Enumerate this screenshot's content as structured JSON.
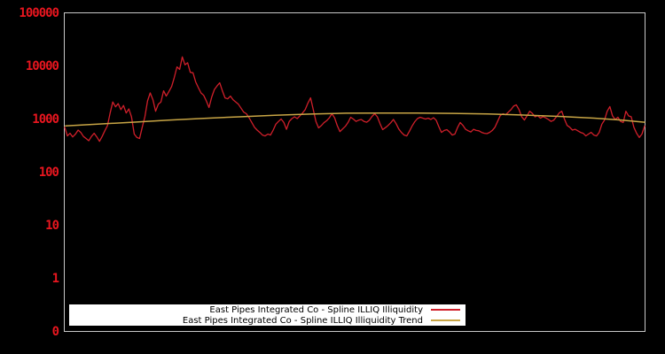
{
  "page": {
    "background": "#000000"
  },
  "chart_data": {
    "type": "line",
    "title": "",
    "xlabel": "",
    "ylabel": "",
    "grid": "off",
    "plot_background": "#000000",
    "frame_color": "#c8c8c8",
    "y_axis": {
      "scale": "log",
      "range": [
        0.1,
        100000
      ],
      "tick_color": "#e8161f",
      "ticks": [
        {
          "value": 100000,
          "label": "100000"
        },
        {
          "value": 10000,
          "label": "10000"
        },
        {
          "value": 1000,
          "label": "1000"
        },
        {
          "value": 100,
          "label": "100"
        },
        {
          "value": 10,
          "label": "10"
        },
        {
          "value": 1,
          "label": "1"
        },
        {
          "value": 0.1,
          "label": "0"
        }
      ]
    },
    "x_axis": {
      "scale": "linear",
      "tick_labels": []
    },
    "legend": {
      "position": "bottom-left",
      "background": "#ffffff",
      "border_color": "#000000",
      "text_color": "#000000"
    },
    "series": [
      {
        "name": "East Pipes Integrated Co - Spline ILLIQ Illiquidity",
        "color": "#d01f2a",
        "line_width": 1.3,
        "values": [
          700,
          480,
          540,
          460,
          520,
          620,
          560,
          470,
          430,
          390,
          470,
          540,
          460,
          380,
          470,
          600,
          750,
          1300,
          2100,
          1700,
          1950,
          1500,
          1800,
          1300,
          1550,
          1100,
          520,
          450,
          430,
          700,
          1100,
          2200,
          3100,
          2300,
          1400,
          1900,
          2100,
          3400,
          2700,
          3300,
          4100,
          6100,
          9600,
          8600,
          14800,
          10500,
          11500,
          7600,
          7400,
          5000,
          3900,
          3100,
          2800,
          2200,
          1650,
          2600,
          3600,
          4200,
          4800,
          3400,
          2500,
          2400,
          2700,
          2300,
          2100,
          1900,
          1600,
          1350,
          1260,
          1050,
          860,
          700,
          620,
          560,
          500,
          480,
          520,
          500,
          620,
          800,
          900,
          1000,
          860,
          640,
          900,
          1020,
          1100,
          1020,
          1150,
          1300,
          1500,
          2000,
          2500,
          1500,
          900,
          680,
          750,
          850,
          930,
          1050,
          1260,
          1050,
          750,
          580,
          650,
          730,
          860,
          1080,
          1000,
          900,
          950,
          980,
          900,
          870,
          950,
          1120,
          1260,
          1100,
          820,
          630,
          690,
          760,
          850,
          980,
          820,
          650,
          560,
          500,
          480,
          590,
          740,
          890,
          1020,
          1080,
          1040,
          1000,
          1040,
          980,
          1060,
          950,
          720,
          560,
          610,
          630,
          570,
          500,
          520,
          690,
          860,
          760,
          640,
          600,
          570,
          640,
          610,
          600,
          560,
          540,
          530,
          560,
          610,
          700,
          900,
          1170,
          1260,
          1200,
          1350,
          1500,
          1750,
          1850,
          1500,
          1100,
          960,
          1150,
          1400,
          1280,
          1100,
          1160,
          1040,
          1110,
          1050,
          980,
          900,
          950,
          1100,
          1300,
          1400,
          1000,
          760,
          700,
          620,
          640,
          600,
          560,
          540,
          480,
          520,
          560,
          500,
          480,
          560,
          800,
          960,
          1400,
          1720,
          1150,
          980,
          1080,
          900,
          860,
          1400,
          1150,
          1100,
          700,
          540,
          450,
          520,
          740
        ]
      },
      {
        "name": "East Pipes Integrated Co - Spline ILLIQ Illiquidity Trend",
        "color": "#c8a545",
        "line_width": 1.5,
        "x": [
          0.3,
          12.3,
          25.5,
          38.8,
          52.1,
          65.4,
          78.6,
          91.9,
          105.2,
          118.5,
          131.7,
          145.0,
          158.3,
          171.6,
          184.8,
          198.1,
          208.1,
          217
        ],
        "values": [
          740,
          800,
          870,
          950,
          1030,
          1100,
          1180,
          1240,
          1290,
          1300,
          1295,
          1280,
          1250,
          1190,
          1120,
          1040,
          960,
          870
        ]
      }
    ]
  }
}
